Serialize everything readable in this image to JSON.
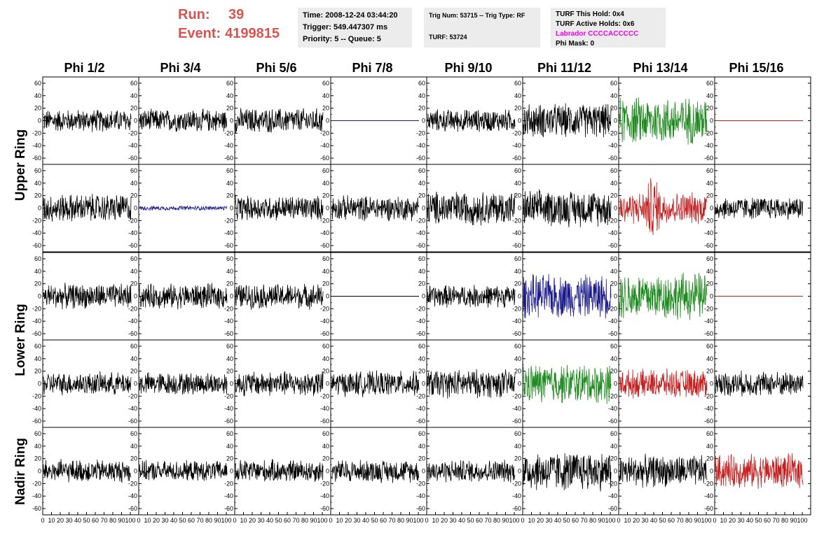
{
  "run_info": {
    "run_label": "Run:",
    "run_value": "39",
    "event_label": "Event:",
    "event_value": "4199815"
  },
  "time_box": {
    "time": "Time: 2008-12-24 03:44:20",
    "trigger": "Trigger: 549.447307 ms",
    "priority": "Priority: 5 -- Queue: 5"
  },
  "trig_box": {
    "trig": "Trig Num: 53715 -- Trig Type: RF",
    "turf": "TURF: 53724"
  },
  "turf_box": {
    "this_hold": "TURF This Hold: 0x4",
    "active_holds": "TURF Active Holds: 0x6",
    "labrador": "Labrador CCCCACCCCC",
    "phi_mask": "Phi Mask: 0"
  },
  "chart_data": {
    "type": "line",
    "columns": [
      "Phi 1/2",
      "Phi 3/4",
      "Phi 5/6",
      "Phi 7/8",
      "Phi 9/10",
      "Phi 11/12",
      "Phi 13/14",
      "Phi 15/16"
    ],
    "rings": [
      "Upper Ring",
      "Lower Ring",
      "Nadir Ring"
    ],
    "xlim": [
      0,
      100
    ],
    "ylim": [
      -70,
      70
    ],
    "x_ticks": [
      "0",
      "10",
      "20",
      "30",
      "40",
      "50",
      "60",
      "70",
      "80",
      "90",
      "100"
    ],
    "y_ticks": [
      60,
      40,
      20,
      0,
      -20,
      -40,
      -60
    ],
    "colors": {
      "black": "#000000",
      "blue": "#1a1a8c",
      "green": "#1f8a1f",
      "red": "#c42020"
    },
    "panels": [
      [
        {
          "color": "black",
          "amplitude": 20,
          "flat": false
        },
        {
          "color": "black",
          "amplitude": 20,
          "flat": false
        },
        {
          "color": "black",
          "amplitude": 22,
          "flat": false
        },
        {
          "color": "blue",
          "amplitude": 0,
          "flat": true
        },
        {
          "color": "black",
          "amplitude": 20,
          "flat": false
        },
        {
          "color": "black",
          "amplitude": 30,
          "flat": false
        },
        {
          "color": "green",
          "amplitude": 42,
          "flat": false
        },
        {
          "color": "red",
          "amplitude": 0,
          "flat": true
        }
      ],
      [
        {
          "color": "black",
          "amplitude": 25,
          "flat": false
        },
        {
          "color": "blue",
          "amplitude": 4,
          "flat": false
        },
        {
          "color": "black",
          "amplitude": 22,
          "flat": false
        },
        {
          "color": "black",
          "amplitude": 22,
          "flat": false
        },
        {
          "color": "black",
          "amplitude": 30,
          "flat": false
        },
        {
          "color": "black",
          "amplitude": 32,
          "flat": false
        },
        {
          "color": "red",
          "amplitude": 28,
          "flat": false
        },
        {
          "color": "black",
          "amplitude": 20,
          "flat": false
        }
      ],
      [
        {
          "color": "black",
          "amplitude": 22,
          "flat": false
        },
        {
          "color": "black",
          "amplitude": 22,
          "flat": false
        },
        {
          "color": "black",
          "amplitude": 22,
          "flat": false
        },
        {
          "color": "black",
          "amplitude": 0,
          "flat": true
        },
        {
          "color": "black",
          "amplitude": 20,
          "flat": false
        },
        {
          "color": "blue",
          "amplitude": 38,
          "flat": false
        },
        {
          "color": "green",
          "amplitude": 42,
          "flat": false
        },
        {
          "color": "red",
          "amplitude": 0,
          "flat": true
        }
      ],
      [
        {
          "color": "black",
          "amplitude": 20,
          "flat": false
        },
        {
          "color": "black",
          "amplitude": 20,
          "flat": false
        },
        {
          "color": "black",
          "amplitude": 22,
          "flat": false
        },
        {
          "color": "black",
          "amplitude": 22,
          "flat": false
        },
        {
          "color": "black",
          "amplitude": 25,
          "flat": false
        },
        {
          "color": "green",
          "amplitude": 35,
          "flat": false
        },
        {
          "color": "red",
          "amplitude": 25,
          "flat": false
        },
        {
          "color": "black",
          "amplitude": 22,
          "flat": false
        }
      ],
      [
        {
          "color": "black",
          "amplitude": 20,
          "flat": false
        },
        {
          "color": "black",
          "amplitude": 18,
          "flat": false
        },
        {
          "color": "black",
          "amplitude": 20,
          "flat": false
        },
        {
          "color": "black",
          "amplitude": 20,
          "flat": false
        },
        {
          "color": "black",
          "amplitude": 20,
          "flat": false
        },
        {
          "color": "black",
          "amplitude": 35,
          "flat": false
        },
        {
          "color": "black",
          "amplitude": 28,
          "flat": false
        },
        {
          "color": "red",
          "amplitude": 30,
          "flat": false
        }
      ]
    ]
  }
}
